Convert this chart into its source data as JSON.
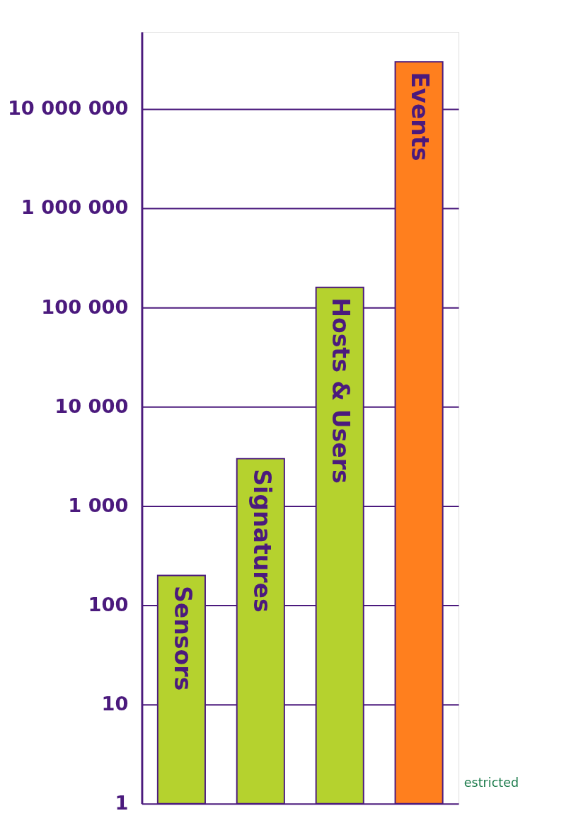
{
  "chart_data": {
    "type": "bar",
    "categories": [
      "Sensors",
      "Signatures",
      "Hosts & Users",
      "Events"
    ],
    "values": [
      200,
      3000,
      160000,
      30000000
    ],
    "colors": [
      "#b5d22e",
      "#b5d22e",
      "#b5d22e",
      "#ff7f1e"
    ],
    "log": true,
    "ylim": [
      1,
      60000000
    ],
    "yticks": [
      1,
      10,
      100,
      {
        "value": 1000,
        "label": "1 000"
      },
      {
        "value": 10000,
        "label": "10 000"
      },
      {
        "value": 100000,
        "label": "100 000"
      },
      {
        "value": 1000000,
        "label": "1 000 000"
      },
      {
        "value": 10000000,
        "label": "10 000 000"
      }
    ],
    "grid": "y",
    "tick_labels": "y",
    "annotations": [
      "estricted"
    ]
  }
}
